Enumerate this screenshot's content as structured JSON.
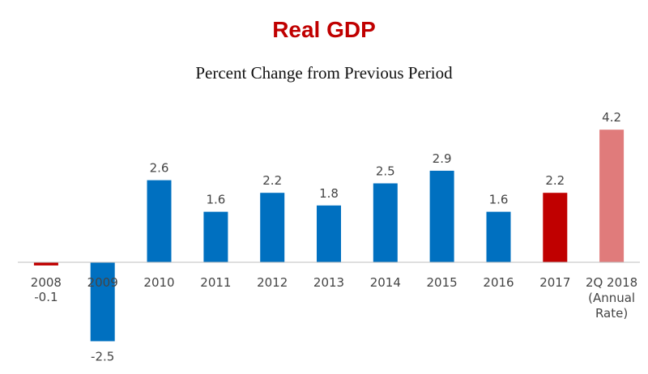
{
  "chart_data": {
    "type": "bar",
    "title": "Real GDP",
    "subtitle": "Percent Change from Previous Period",
    "xlabel": "",
    "ylabel": "",
    "ylim": [
      -3,
      5
    ],
    "grid": false,
    "legend": "none",
    "categories": [
      [
        "2008"
      ],
      [
        "2009"
      ],
      [
        "2010"
      ],
      [
        "2011"
      ],
      [
        "2012"
      ],
      [
        "2013"
      ],
      [
        "2014"
      ],
      [
        "2015"
      ],
      [
        "2016"
      ],
      [
        "2017"
      ],
      [
        "2Q 2018",
        "(Annual",
        "Rate)"
      ]
    ],
    "values": [
      -0.1,
      -2.5,
      2.6,
      1.6,
      2.2,
      1.8,
      2.5,
      2.9,
      1.6,
      2.2,
      4.2
    ],
    "data_labels": [
      "-0.1",
      "-2.5",
      "2.6",
      "1.6",
      "2.2",
      "1.8",
      "2.5",
      "2.9",
      "1.6",
      "2.2",
      "4.2"
    ],
    "bar_colors": [
      "#c00000",
      "#0070c0",
      "#0070c0",
      "#0070c0",
      "#0070c0",
      "#0070c0",
      "#0070c0",
      "#0070c0",
      "#0070c0",
      "#c00000",
      "#e07b7b"
    ],
    "colors": {
      "title": "#c00000",
      "axis": "#bfbfbf"
    }
  }
}
